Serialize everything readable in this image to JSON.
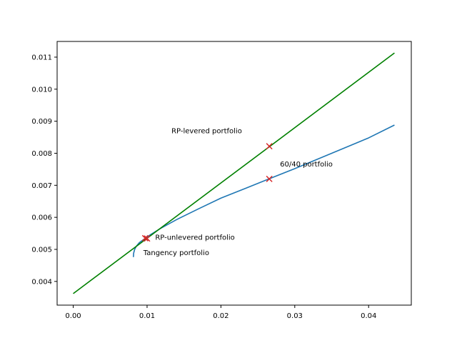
{
  "chart_data": {
    "type": "line",
    "title": "",
    "xlabel": "",
    "ylabel": "",
    "xlim": [
      -0.00218,
      0.04578
    ],
    "ylim": [
      0.00326,
      0.01149
    ],
    "x_ticks": [
      "0.00",
      "0.01",
      "0.02",
      "0.03",
      "0.04"
    ],
    "x_tick_values": [
      0.0,
      0.01,
      0.02,
      0.03,
      0.04
    ],
    "y_ticks": [
      "0.004",
      "0.005",
      "0.006",
      "0.007",
      "0.008",
      "0.009",
      "0.010",
      "0.011"
    ],
    "y_tick_values": [
      0.004,
      0.005,
      0.006,
      0.007,
      0.008,
      0.009,
      0.01,
      0.011
    ],
    "grid": false,
    "series": [
      {
        "color": "#1f77b4",
        "points": [
          [
            0.00815,
            0.00476
          ],
          [
            0.00818,
            0.00488
          ],
          [
            0.00832,
            0.005
          ],
          [
            0.00855,
            0.0051
          ],
          [
            0.00895,
            0.00521
          ],
          [
            0.0096,
            0.00532
          ],
          [
            0.0104,
            0.00545
          ],
          [
            0.0118,
            0.00565
          ],
          [
            0.014,
            0.00593
          ],
          [
            0.017,
            0.00627
          ],
          [
            0.02,
            0.0066
          ],
          [
            0.0235,
            0.00692
          ],
          [
            0.0265,
            0.0072
          ],
          [
            0.03,
            0.00752
          ],
          [
            0.035,
            0.008
          ],
          [
            0.04,
            0.00848
          ],
          [
            0.0435,
            0.00888
          ]
        ]
      },
      {
        "color": "#008000",
        "points": [
          [
            0.0,
            0.00362
          ],
          [
            0.0435,
            0.01113
          ]
        ]
      }
    ],
    "markers": [
      {
        "x": 0.01,
        "y": 0.00534,
        "color": "#d62728"
      },
      {
        "x": 0.00975,
        "y": 0.00535,
        "color": "#d62728"
      },
      {
        "x": 0.02655,
        "y": 0.0072,
        "color": "#d62728"
      },
      {
        "x": 0.02655,
        "y": 0.00822,
        "color": "#d62728"
      }
    ],
    "annotations": [
      {
        "text": "RP-levered portfolio",
        "x": 0.0133,
        "y": 0.00862
      },
      {
        "text": "60/40 portfolio",
        "x": 0.028,
        "y": 0.00759
      },
      {
        "text": "RP-unlevered portfolio",
        "x": 0.0111,
        "y": 0.0053
      },
      {
        "text": "Tangency portfolio",
        "x": 0.0095,
        "y": 0.00482
      }
    ]
  }
}
